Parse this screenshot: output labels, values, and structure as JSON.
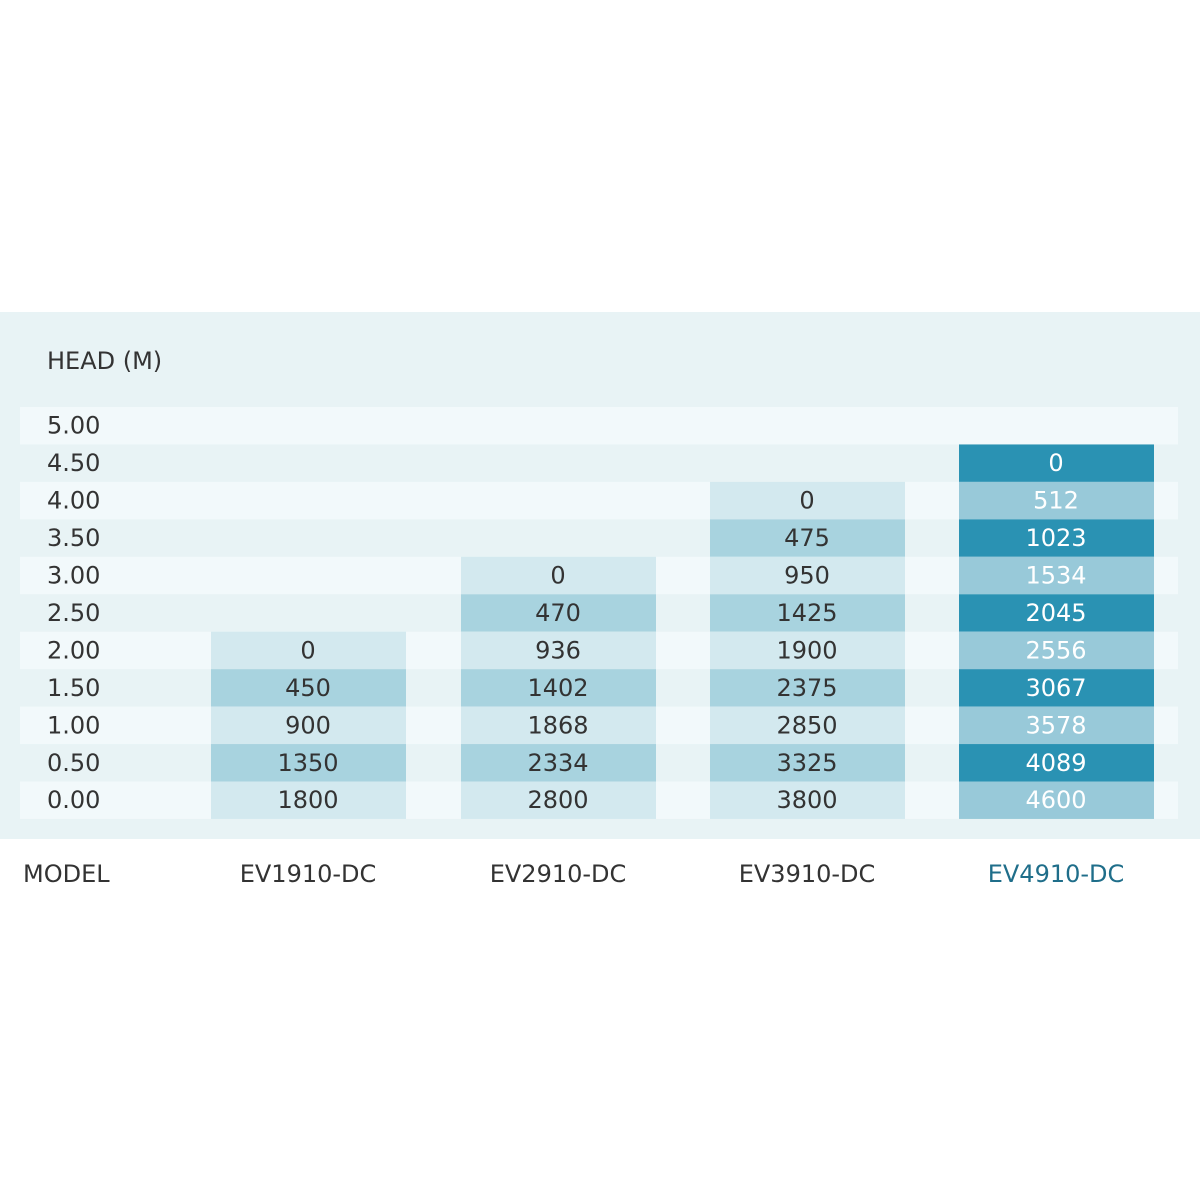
{
  "header": {
    "title": "HEAD  (M)"
  },
  "rows": [
    "5.00",
    "4.50",
    "4.00",
    "3.50",
    "3.00",
    "2.50",
    "2.00",
    "1.50",
    "1.00",
    "0.50",
    "0.00"
  ],
  "model_label": "MODEL",
  "models": [
    {
      "name": "EV1910-DC",
      "values": [
        0,
        450,
        900,
        1350,
        1800
      ]
    },
    {
      "name": "EV2910-DC",
      "values": [
        0,
        470,
        936,
        1402,
        1868,
        2334,
        2800
      ]
    },
    {
      "name": "EV3910-DC",
      "values": [
        0,
        475,
        950,
        1425,
        1900,
        2375,
        2850,
        3325,
        3800
      ]
    },
    {
      "name": "EV4910-DC",
      "values": [
        0,
        512,
        1023,
        1534,
        2045,
        2556,
        3067,
        3578,
        4089,
        4600
      ]
    }
  ]
}
